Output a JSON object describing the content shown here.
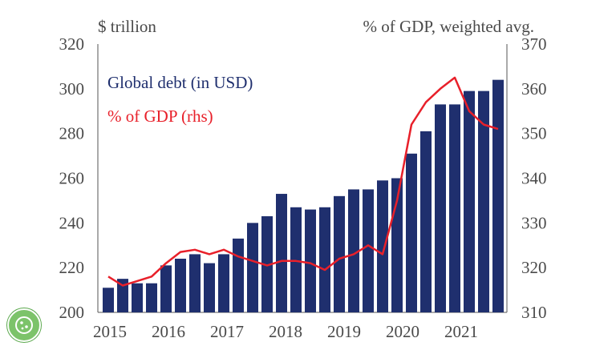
{
  "chart_data": {
    "type": "bar",
    "left_axis_unit": "$ trillion",
    "right_axis_unit": "% of GDP, weighted avg.",
    "ylim": [
      200,
      320
    ],
    "yticks": [
      "200",
      "220",
      "240",
      "260",
      "280",
      "300",
      "320"
    ],
    "y2lim": [
      310,
      370
    ],
    "y2ticks": [
      "310",
      "320",
      "330",
      "340",
      "350",
      "360",
      "370"
    ],
    "xticks": [
      "2015",
      "2016",
      "2017",
      "2018",
      "2019",
      "2020",
      "2021"
    ],
    "bar_color": "#1f2f6e",
    "line_color": "#e8202a",
    "series": [
      {
        "name": "Global debt (in USD)",
        "type": "bar",
        "axis": "left",
        "values": [
          211,
          215,
          213,
          213,
          221,
          224,
          226,
          222,
          226,
          233,
          240,
          243,
          253,
          247,
          246,
          247,
          252,
          255,
          255,
          259,
          260,
          271,
          281,
          293,
          293,
          299,
          299,
          304
        ]
      },
      {
        "name": "% of GDP (rhs)",
        "type": "line",
        "axis": "right",
        "values": [
          318,
          316,
          317,
          318,
          321,
          323.5,
          324,
          323,
          324,
          322.5,
          321.5,
          320.5,
          321.5,
          321.5,
          321,
          319.5,
          322,
          323,
          325,
          323,
          335,
          352,
          357,
          360,
          362.5,
          355,
          352,
          351
        ]
      }
    ]
  }
}
